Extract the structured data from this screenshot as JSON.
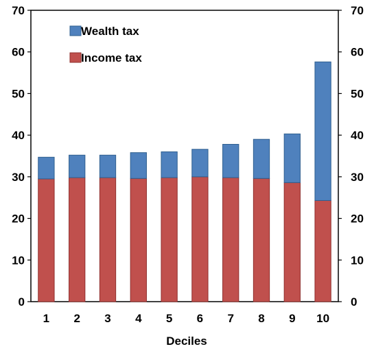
{
  "chart_data": {
    "type": "bar",
    "stacked": true,
    "categories": [
      "1",
      "2",
      "3",
      "4",
      "5",
      "6",
      "7",
      "8",
      "9",
      "10"
    ],
    "series": [
      {
        "name": "Income tax",
        "values": [
          29.5,
          29.8,
          29.8,
          29.6,
          29.8,
          30.0,
          29.8,
          29.6,
          28.6,
          24.3
        ],
        "color": "#c0504d"
      },
      {
        "name": "Wealth tax",
        "values": [
          5.2,
          5.4,
          5.4,
          6.2,
          6.2,
          6.6,
          8.0,
          9.4,
          11.7,
          33.3
        ],
        "color": "#4f81bd"
      }
    ],
    "xlabel": "Deciles",
    "ylabel": "",
    "ylim": [
      0,
      70
    ],
    "yticks": [
      "0",
      "10",
      "20",
      "30",
      "40",
      "50",
      "60",
      "70"
    ],
    "secondary_yticks": [
      "0",
      "10",
      "20",
      "30",
      "40",
      "50",
      "60",
      "70"
    ],
    "grid": false,
    "legend": "top-left"
  }
}
